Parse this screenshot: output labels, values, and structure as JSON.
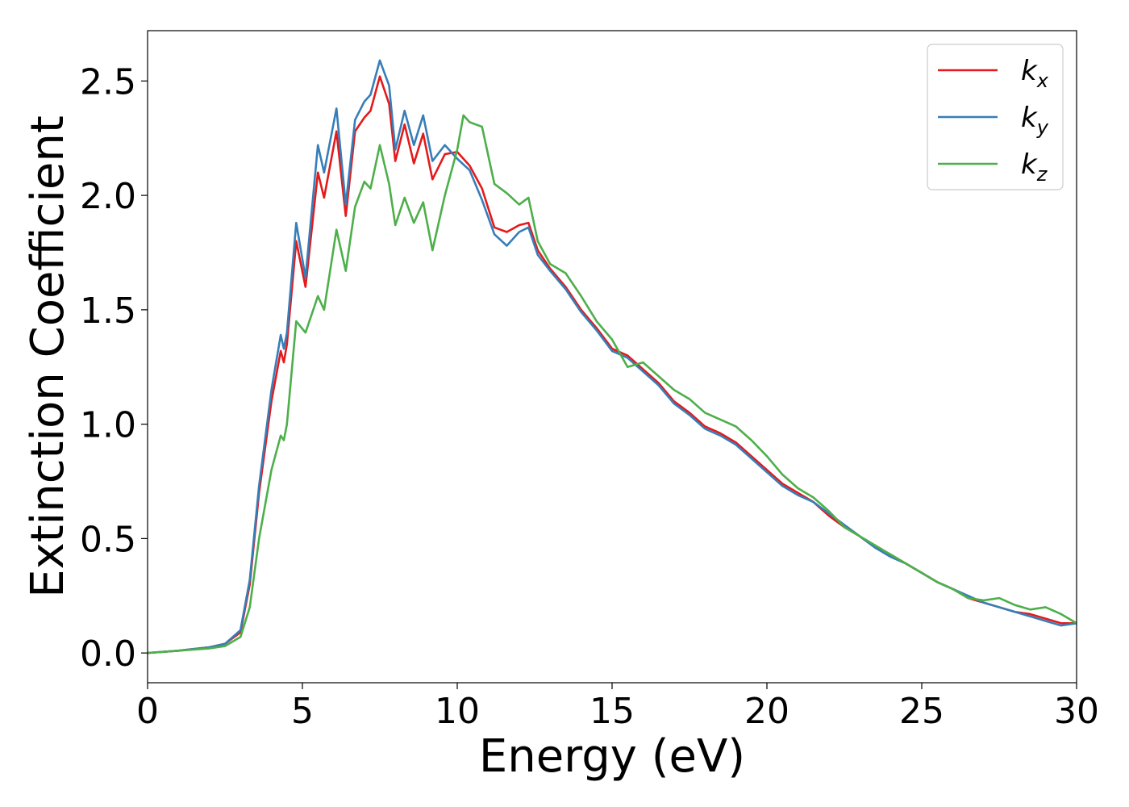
{
  "chart_data": {
    "type": "line",
    "title": "",
    "xlabel": "Energy (eV)",
    "ylabel": "Extinction Coefficient",
    "xlim": [
      0,
      30
    ],
    "ylim": [
      -0.13,
      2.72
    ],
    "xticks": [
      0,
      5,
      10,
      15,
      20,
      25,
      30
    ],
    "xtick_labels": [
      "0",
      "5",
      "10",
      "15",
      "20",
      "25",
      "30"
    ],
    "yticks": [
      0.0,
      0.5,
      1.0,
      1.5,
      2.0,
      2.5
    ],
    "ytick_labels": [
      "0.0",
      "0.5",
      "1.0",
      "1.5",
      "2.0",
      "2.5"
    ],
    "grid": false,
    "legend_position": "top-right",
    "series": [
      {
        "name": "k_x",
        "label_main": "k",
        "label_sub": "x",
        "color": "#e41a1c",
        "x": [
          0,
          1,
          2,
          2.5,
          3,
          3.3,
          3.6,
          4.0,
          4.3,
          4.4,
          4.5,
          4.8,
          5.1,
          5.5,
          5.7,
          6.1,
          6.4,
          6.7,
          7.0,
          7.2,
          7.5,
          7.8,
          8.0,
          8.3,
          8.6,
          8.9,
          9.2,
          9.6,
          10.0,
          10.4,
          10.8,
          11.2,
          11.6,
          12.0,
          12.3,
          12.6,
          13.0,
          13.5,
          14.0,
          14.5,
          15.0,
          15.5,
          16.0,
          16.5,
          17.0,
          17.5,
          18.0,
          18.5,
          19.0,
          19.5,
          20.0,
          20.5,
          21.0,
          21.5,
          22.0,
          22.5,
          23.0,
          23.5,
          24.0,
          24.5,
          25.0,
          25.5,
          26.0,
          26.5,
          27.0,
          27.5,
          28.0,
          28.5,
          29.0,
          29.5,
          30.0
        ],
        "y": [
          0.0,
          0.01,
          0.025,
          0.04,
          0.09,
          0.3,
          0.7,
          1.1,
          1.32,
          1.27,
          1.35,
          1.8,
          1.6,
          2.1,
          1.99,
          2.28,
          1.91,
          2.28,
          2.34,
          2.37,
          2.52,
          2.4,
          2.15,
          2.31,
          2.14,
          2.27,
          2.07,
          2.18,
          2.19,
          2.13,
          2.03,
          1.86,
          1.84,
          1.87,
          1.88,
          1.76,
          1.68,
          1.6,
          1.5,
          1.42,
          1.33,
          1.3,
          1.24,
          1.18,
          1.1,
          1.05,
          0.99,
          0.96,
          0.92,
          0.86,
          0.8,
          0.74,
          0.7,
          0.66,
          0.6,
          0.55,
          0.51,
          0.46,
          0.43,
          0.39,
          0.35,
          0.31,
          0.28,
          0.24,
          0.22,
          0.2,
          0.18,
          0.17,
          0.15,
          0.13,
          0.13
        ]
      },
      {
        "name": "k_y",
        "label_main": "k",
        "label_sub": "y",
        "color": "#377eb8",
        "x": [
          0,
          1,
          2,
          2.5,
          3,
          3.3,
          3.6,
          4.0,
          4.3,
          4.4,
          4.5,
          4.8,
          5.1,
          5.5,
          5.7,
          6.1,
          6.4,
          6.7,
          7.0,
          7.2,
          7.5,
          7.8,
          8.0,
          8.3,
          8.6,
          8.9,
          9.2,
          9.6,
          10.0,
          10.4,
          10.8,
          11.2,
          11.6,
          12.0,
          12.3,
          12.6,
          13.0,
          13.5,
          14.0,
          14.5,
          15.0,
          15.5,
          16.0,
          16.5,
          17.0,
          17.5,
          18.0,
          18.5,
          19.0,
          19.5,
          20.0,
          20.5,
          21.0,
          21.5,
          22.0,
          22.5,
          23.0,
          23.5,
          24.0,
          24.5,
          25.0,
          25.5,
          26.0,
          26.5,
          27.0,
          27.5,
          28.0,
          28.5,
          29.0,
          29.5,
          30.0
        ],
        "y": [
          0.0,
          0.01,
          0.025,
          0.04,
          0.1,
          0.32,
          0.73,
          1.15,
          1.39,
          1.33,
          1.4,
          1.88,
          1.64,
          2.22,
          2.1,
          2.38,
          1.96,
          2.33,
          2.41,
          2.44,
          2.59,
          2.48,
          2.2,
          2.37,
          2.22,
          2.35,
          2.15,
          2.22,
          2.16,
          2.11,
          1.98,
          1.83,
          1.78,
          1.84,
          1.86,
          1.74,
          1.67,
          1.59,
          1.49,
          1.41,
          1.32,
          1.29,
          1.23,
          1.17,
          1.09,
          1.04,
          0.98,
          0.95,
          0.91,
          0.85,
          0.79,
          0.73,
          0.69,
          0.66,
          0.61,
          0.56,
          0.51,
          0.46,
          0.42,
          0.39,
          0.35,
          0.31,
          0.28,
          0.25,
          0.22,
          0.2,
          0.18,
          0.16,
          0.14,
          0.12,
          0.13
        ]
      },
      {
        "name": "k_z",
        "label_main": "k",
        "label_sub": "z",
        "color": "#4daf4a",
        "x": [
          0,
          1,
          2,
          2.5,
          3,
          3.3,
          3.6,
          4.0,
          4.3,
          4.4,
          4.5,
          4.8,
          5.1,
          5.5,
          5.7,
          6.1,
          6.4,
          6.7,
          7.0,
          7.2,
          7.5,
          7.8,
          8.0,
          8.3,
          8.6,
          8.9,
          9.2,
          9.6,
          10.0,
          10.2,
          10.4,
          10.8,
          11.2,
          11.6,
          12.0,
          12.3,
          12.6,
          13.0,
          13.5,
          14.0,
          14.5,
          15.0,
          15.5,
          16.0,
          16.5,
          17.0,
          17.5,
          18.0,
          18.5,
          19.0,
          19.5,
          20.0,
          20.5,
          21.0,
          21.5,
          22.0,
          22.5,
          23.0,
          23.5,
          24.0,
          24.5,
          25.0,
          25.5,
          26.0,
          26.5,
          27.0,
          27.5,
          28.0,
          28.5,
          29.0,
          29.5,
          30.0
        ],
        "y": [
          0.0,
          0.01,
          0.02,
          0.03,
          0.07,
          0.2,
          0.5,
          0.8,
          0.95,
          0.93,
          1.0,
          1.45,
          1.4,
          1.56,
          1.5,
          1.85,
          1.67,
          1.95,
          2.06,
          2.03,
          2.22,
          2.05,
          1.87,
          1.99,
          1.88,
          1.97,
          1.76,
          2.0,
          2.2,
          2.35,
          2.32,
          2.3,
          2.05,
          2.01,
          1.96,
          1.99,
          1.8,
          1.7,
          1.66,
          1.56,
          1.45,
          1.37,
          1.25,
          1.27,
          1.21,
          1.15,
          1.11,
          1.05,
          1.02,
          0.99,
          0.93,
          0.86,
          0.78,
          0.72,
          0.68,
          0.62,
          0.55,
          0.51,
          0.47,
          0.43,
          0.39,
          0.35,
          0.31,
          0.28,
          0.24,
          0.23,
          0.24,
          0.21,
          0.19,
          0.2,
          0.17,
          0.13
        ]
      }
    ]
  }
}
